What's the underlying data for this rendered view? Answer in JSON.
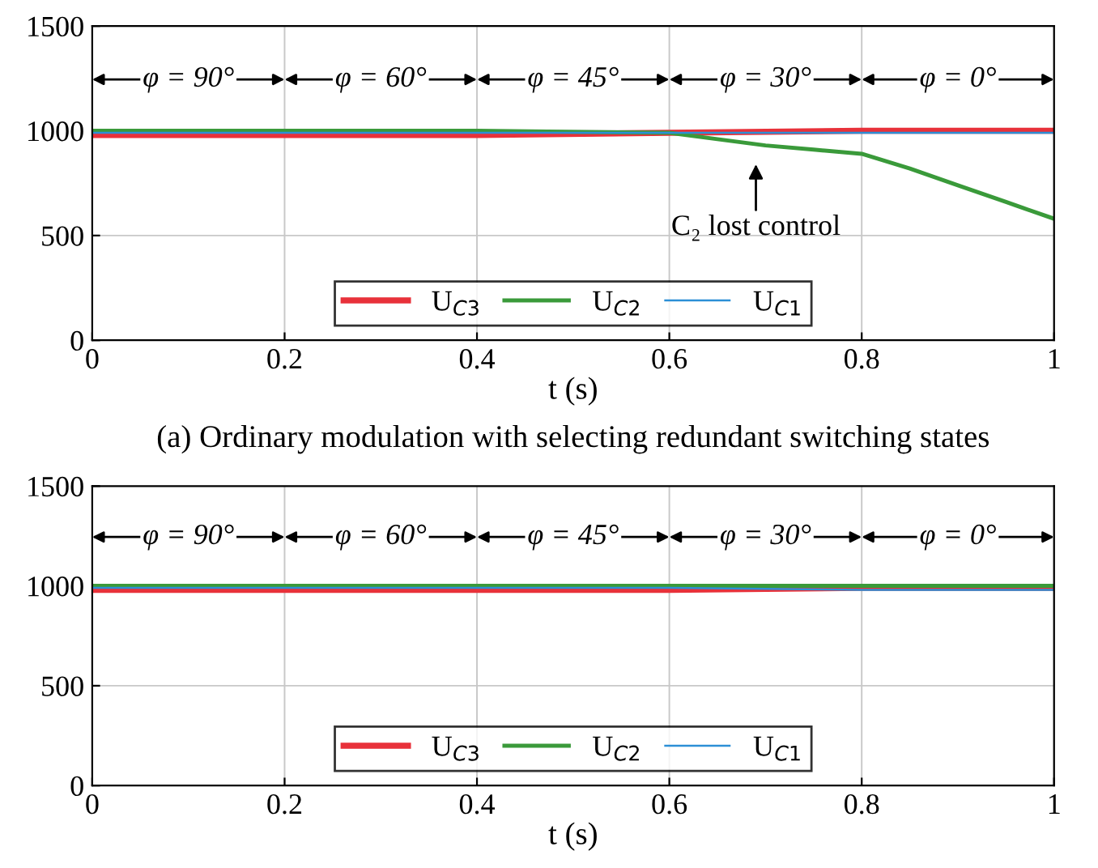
{
  "chart_data": [
    {
      "type": "line",
      "xlabel": "t (s)",
      "xlim": [
        0,
        1
      ],
      "ylim": [
        0,
        1500
      ],
      "xticks": [
        0,
        0.2,
        0.4,
        0.6,
        0.8,
        1
      ],
      "yticks": [
        0,
        500,
        1000,
        1500
      ],
      "grid": true,
      "legend": "bottom",
      "series": [
        {
          "name": "U$_{C3}$",
          "color": "#e8313a",
          "x": [
            0,
            0.2,
            0.4,
            0.6,
            0.8,
            1
          ],
          "values": [
            980,
            980,
            980,
            990,
            1000,
            1000
          ]
        },
        {
          "name": "U$_{C2}$",
          "color": "#3a9a3a",
          "x": [
            0,
            0.2,
            0.4,
            0.6,
            0.65,
            0.7,
            0.75,
            0.8,
            0.85,
            0.9,
            0.95,
            1
          ],
          "values": [
            1000,
            1000,
            1000,
            990,
            960,
            930,
            910,
            890,
            820,
            740,
            660,
            580
          ]
        },
        {
          "name": "U$_{C1}$",
          "color": "#2c8fd6",
          "x": [
            0,
            0.2,
            0.4,
            0.6,
            0.8,
            1
          ],
          "values": [
            990,
            990,
            990,
            990,
            990,
            990
          ]
        }
      ],
      "annotations": [
        "φ = 90°",
        "φ = 60°",
        "φ = 45°",
        "φ = 30°",
        "φ = 0°",
        "C₂ lost control",
        "(a) Ordinary modulation with selecting redundant switching states"
      ]
    },
    {
      "type": "line",
      "xlabel": "t (s)",
      "xlim": [
        0,
        1
      ],
      "ylim": [
        0,
        1500
      ],
      "xticks": [
        0,
        0.2,
        0.4,
        0.6,
        0.8,
        1
      ],
      "yticks": [
        0,
        500,
        1000,
        1500
      ],
      "grid": true,
      "legend": "bottom",
      "series": [
        {
          "name": "U$_{C3}$",
          "color": "#e8313a",
          "x": [
            0,
            0.2,
            0.4,
            0.6,
            0.8,
            1
          ],
          "values": [
            980,
            980,
            980,
            980,
            990,
            990
          ]
        },
        {
          "name": "U$_{C2}$",
          "color": "#3a9a3a",
          "x": [
            0,
            0.2,
            0.4,
            0.6,
            0.8,
            1
          ],
          "values": [
            1000,
            1000,
            1000,
            1000,
            1000,
            1000
          ]
        },
        {
          "name": "U$_{C1}$",
          "color": "#2c8fd6",
          "x": [
            0,
            0.2,
            0.4,
            0.6,
            0.8,
            1
          ],
          "values": [
            990,
            990,
            990,
            990,
            980,
            980
          ]
        }
      ],
      "annotations": [
        "φ = 90°",
        "φ = 60°",
        "φ = 45°",
        "φ = 30°",
        "φ = 0°"
      ]
    }
  ]
}
